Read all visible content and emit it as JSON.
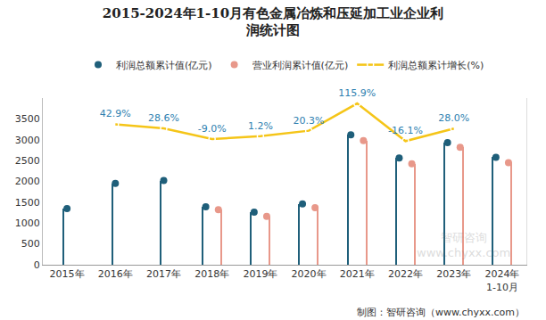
{
  "chart_data": {
    "type": "bar",
    "title": "2015-2024年1-10月有色金属冶炼和压延加工业企业利\n润统计图",
    "categories": [
      "2015年",
      "2016年",
      "2017年",
      "2018年",
      "2019年",
      "2020年",
      "2021年",
      "2022年",
      "2023年",
      "2024年\n1-10月"
    ],
    "series": [
      {
        "name": "利润总额累计值(亿元)",
        "color": "#1f5f7a",
        "marker": "circle",
        "values": [
          1350,
          1950,
          2020,
          1390,
          1260,
          1460,
          3120,
          2560,
          2930,
          2580
        ]
      },
      {
        "name": "营业利润累计值(亿元)",
        "color": "#e8988a",
        "marker": "circle",
        "values": [
          null,
          null,
          null,
          1320,
          1160,
          1370,
          2980,
          2420,
          2820,
          2450
        ]
      },
      {
        "name": "利润总额累计增长(%)",
        "type": "line",
        "axis": "y2",
        "color": "#f5c518",
        "marker": "circle-open",
        "data_labels": true,
        "values": [
          null,
          42.9,
          28.6,
          -9.0,
          1.2,
          20.3,
          115.9,
          -16.1,
          28.0,
          null
        ],
        "value_labels": [
          null,
          "42.9%",
          "28.6%",
          "-9.0%",
          "1.2%",
          "20.3%",
          "115.9%",
          "-16.1%",
          "28.0%",
          null
        ]
      }
    ],
    "ylim": [
      0,
      4000
    ],
    "yticks": [
      0,
      500,
      1000,
      1500,
      2000,
      2500,
      3000,
      3500
    ],
    "y2lim": [
      -450,
      135
    ],
    "grid": false,
    "legend": "top",
    "source": "制图：智研咨询（www.chyxx.com）",
    "watermark": "智研咨询\nwww.chyxx.com"
  }
}
